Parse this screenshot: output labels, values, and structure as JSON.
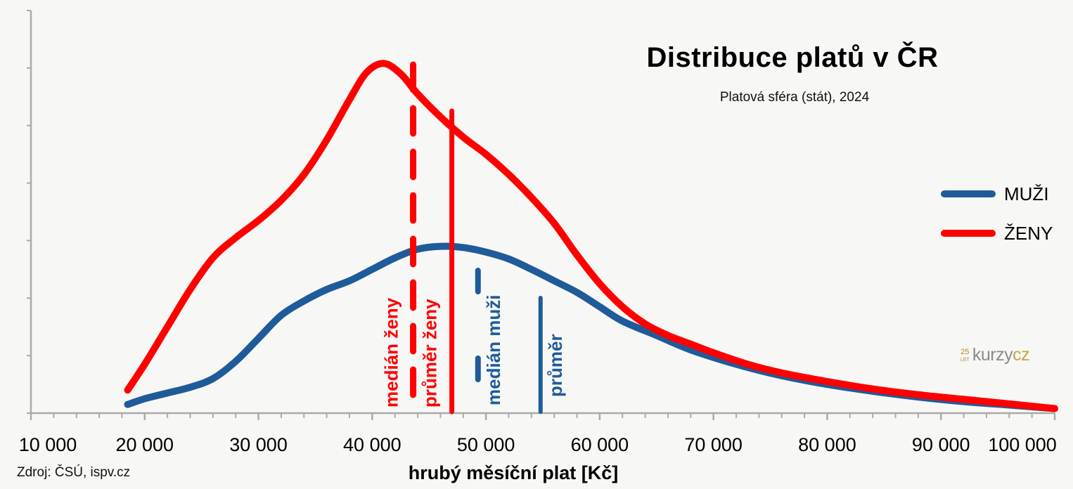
{
  "title": "Distribuce platů v ČR",
  "subtitle": "Platová sféra (stát), 2024",
  "source": "Zdroj: ČSÚ, ispv.cz",
  "logo": {
    "years": "25",
    "years_label": "LET",
    "brand_main": "kurzy",
    "brand_accent": "cz"
  },
  "colors": {
    "men": "#1f5b9a",
    "women": "#ff0000",
    "axis": "#aaaaaa",
    "background": "#f7f7f5"
  },
  "chart_data": {
    "type": "line",
    "title": "Distribuce platů v ČR",
    "subtitle": "Platová sféra (stát), 2024",
    "xlabel": "hrubý měsíční plat [Kč]",
    "ylabel": "",
    "xlim": [
      10000,
      100000
    ],
    "ylim": [
      0,
      7
    ],
    "x_ticks": [
      10000,
      20000,
      30000,
      40000,
      50000,
      60000,
      70000,
      80000,
      90000,
      100000
    ],
    "x_tick_labels": [
      "10 000",
      "20 000",
      "30 000",
      "40 000",
      "50 000",
      "60 000",
      "70 000",
      "80 000",
      "90 000",
      "100 000"
    ],
    "grid": false,
    "legend_position": "right",
    "series": [
      {
        "name": "MUŽI",
        "color": "#1f5b9a",
        "x": [
          18500,
          20000,
          22000,
          24000,
          26000,
          28000,
          30000,
          32000,
          34000,
          36000,
          38000,
          40000,
          42000,
          44000,
          46000,
          48000,
          50000,
          52000,
          54000,
          56000,
          58000,
          60000,
          62000,
          65000,
          68000,
          72000,
          76000,
          80000,
          84000,
          88000,
          92000,
          96000,
          100000
        ],
        "y": [
          0.15,
          0.25,
          0.35,
          0.45,
          0.6,
          0.9,
          1.3,
          1.7,
          1.95,
          2.15,
          2.3,
          2.5,
          2.7,
          2.85,
          2.9,
          2.88,
          2.8,
          2.68,
          2.5,
          2.3,
          2.1,
          1.85,
          1.6,
          1.35,
          1.1,
          0.85,
          0.65,
          0.5,
          0.38,
          0.28,
          0.2,
          0.14,
          0.08
        ]
      },
      {
        "name": "ŽENY",
        "color": "#ff0000",
        "x": [
          18500,
          20000,
          22000,
          24000,
          26000,
          28000,
          30000,
          32000,
          34000,
          36000,
          38000,
          39500,
          41000,
          42500,
          44000,
          46000,
          48000,
          50000,
          52000,
          54000,
          56000,
          58000,
          60000,
          62000,
          64000,
          66000,
          68000,
          70000,
          73000,
          76000,
          80000,
          84000,
          88000,
          92000,
          96000,
          100000
        ],
        "y": [
          0.4,
          0.85,
          1.5,
          2.15,
          2.7,
          3.05,
          3.35,
          3.7,
          4.15,
          4.75,
          5.45,
          5.92,
          6.08,
          5.9,
          5.55,
          5.15,
          4.8,
          4.5,
          4.15,
          3.75,
          3.3,
          2.75,
          2.25,
          1.85,
          1.55,
          1.35,
          1.2,
          1.05,
          0.85,
          0.7,
          0.55,
          0.42,
          0.32,
          0.24,
          0.16,
          0.08
        ]
      }
    ],
    "reference_lines": [
      {
        "label": "medián ženy",
        "x": 43600,
        "color": "#ff0000",
        "style": "dashed"
      },
      {
        "label": "průměr ženy",
        "x": 47000,
        "color": "#ff0000",
        "style": "solid"
      },
      {
        "label": "medián muži",
        "x": 49300,
        "color": "#1f5b9a",
        "style": "dashed"
      },
      {
        "label": "průměr",
        "x": 54800,
        "color": "#1f5b9a",
        "style": "solid"
      }
    ]
  }
}
